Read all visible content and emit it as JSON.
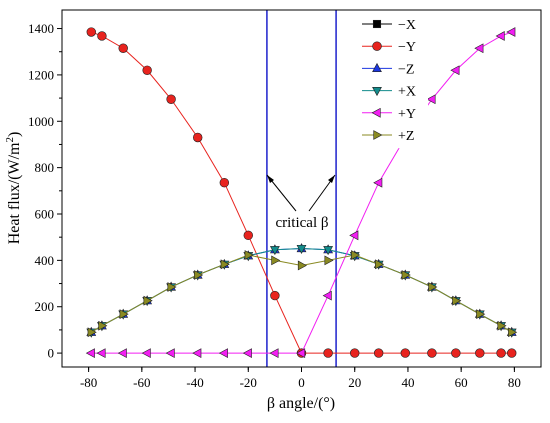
{
  "chart_data": {
    "type": "line",
    "xlabel": "β angle/(°)",
    "ylabel_main": "Heat flux/(W/m",
    "ylabel_sup": "2",
    "ylabel_close": ")",
    "xlim": [
      -90,
      90
    ],
    "ylim": [
      -60,
      1480
    ],
    "xticks": [
      -80,
      -60,
      -40,
      -20,
      0,
      20,
      40,
      60,
      80
    ],
    "yticks": [
      0,
      200,
      400,
      600,
      800,
      1000,
      1200,
      1400
    ],
    "grid": false,
    "legend_position": "top-right",
    "critical_lines": [
      -13,
      13
    ],
    "annotation": "critical β",
    "x": [
      -79,
      -75,
      -67,
      -58,
      -49,
      -39,
      -29,
      -20,
      -10,
      0,
      10,
      20,
      29,
      39,
      49,
      58,
      67,
      75,
      79
    ],
    "series": [
      {
        "name": "−X",
        "marker": "square",
        "color": "#000000",
        "values": [
          null,
          null,
          null,
          null,
          null,
          null,
          null,
          null,
          null,
          null,
          null,
          null,
          null,
          null,
          null,
          null,
          null,
          null,
          null
        ]
      },
      {
        "name": "−Y",
        "marker": "circle",
        "color": "#e8231e",
        "values": [
          1385,
          1368,
          1315,
          1220,
          1095,
          930,
          735,
          508,
          248,
          0,
          0,
          0,
          0,
          0,
          0,
          0,
          0,
          0,
          0
        ]
      },
      {
        "name": "−Z",
        "marker": "triangle-up",
        "color": "#1b36e0",
        "values": [
          90,
          118,
          168,
          226,
          285,
          337,
          383,
          420,
          446,
          451,
          446,
          420,
          383,
          337,
          285,
          226,
          168,
          118,
          90
        ]
      },
      {
        "name": "+X",
        "marker": "triangle-down",
        "color": "#138c8c",
        "values": [
          90,
          118,
          168,
          226,
          285,
          337,
          383,
          420,
          446,
          451,
          446,
          420,
          383,
          337,
          285,
          226,
          168,
          118,
          90
        ]
      },
      {
        "name": "+Y",
        "marker": "triangle-left",
        "color": "#f21ef2",
        "values": [
          0,
          0,
          0,
          0,
          0,
          0,
          0,
          0,
          0,
          0,
          248,
          508,
          735,
          930,
          1095,
          1220,
          1315,
          1368,
          1385
        ]
      },
      {
        "name": "+Z",
        "marker": "triangle-right",
        "color": "#8a8a22",
        "values": [
          90,
          118,
          168,
          226,
          285,
          337,
          383,
          423,
          400,
          378,
          400,
          423,
          383,
          337,
          285,
          226,
          168,
          118,
          90
        ]
      }
    ]
  }
}
